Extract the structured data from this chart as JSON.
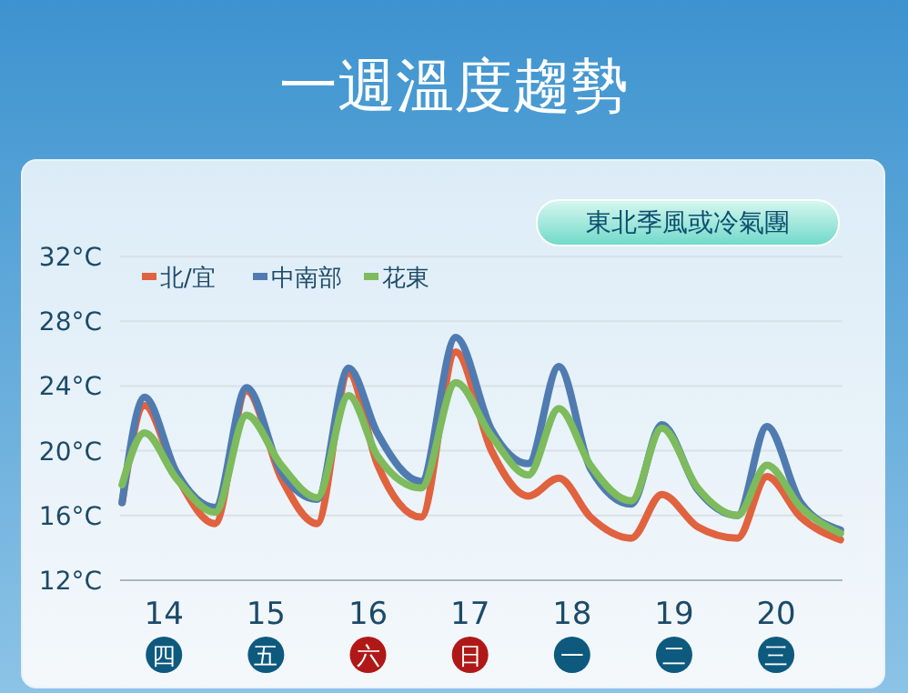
{
  "chart_data": {
    "type": "line",
    "title": "一週溫度趨勢",
    "x": [
      13.59,
      13.81,
      14.12,
      14.5,
      14.81,
      15.15,
      15.5,
      15.81,
      16.09,
      16.52,
      16.86,
      17.21,
      17.57,
      17.87,
      18.18,
      18.58,
      18.88,
      19.23,
      19.62,
      19.91,
      20.24,
      20.63
    ],
    "series": [
      {
        "name": "北/宜",
        "color": "#e0623f",
        "values": [
          16.8,
          22.8,
          18.5,
          15.5,
          23.7,
          18.3,
          15.5,
          24.8,
          19.2,
          15.9,
          26.1,
          20,
          17.2,
          18.3,
          15.9,
          14.6,
          17.3,
          15.3,
          14.6,
          18.4,
          15.9,
          14.5
        ]
      },
      {
        "name": "中南部",
        "color": "#4f7bb0",
        "values": [
          16.8,
          23.3,
          18.7,
          16.5,
          23.9,
          18.7,
          17,
          25.1,
          21.1,
          18.1,
          27,
          21.3,
          19.2,
          25.2,
          18.9,
          16.7,
          21.6,
          17.6,
          16,
          21.5,
          16.8,
          15.1
        ]
      },
      {
        "name": "花東",
        "color": "#7dbb5c",
        "values": [
          17.9,
          21.1,
          18.3,
          16.2,
          22.2,
          19.1,
          17.1,
          23.4,
          19.7,
          17.7,
          24.2,
          20.9,
          18.5,
          22.6,
          19.1,
          16.9,
          21.4,
          17.7,
          16,
          19.1,
          16.5,
          14.9
        ]
      }
    ],
    "xlim": [
      13.57,
      20.65
    ],
    "xticks": [
      14,
      15,
      16,
      17,
      18,
      19,
      20
    ],
    "ylim": [
      12,
      32
    ],
    "yticks": [
      {
        "value": 12,
        "label": "12°C"
      },
      {
        "value": 16,
        "label": "16°C"
      },
      {
        "value": 20,
        "label": "20°C"
      },
      {
        "value": 24,
        "label": "24°C"
      },
      {
        "value": 28,
        "label": "28°C"
      },
      {
        "value": 32,
        "label": "32°C"
      }
    ],
    "grid": "y",
    "legend": "top left",
    "line_style": "solid",
    "marker": "none",
    "annotations": [
      "東北季風或冷氣團",
      "四",
      "五",
      "六",
      "日",
      "一",
      "二",
      "三"
    ]
  }
}
